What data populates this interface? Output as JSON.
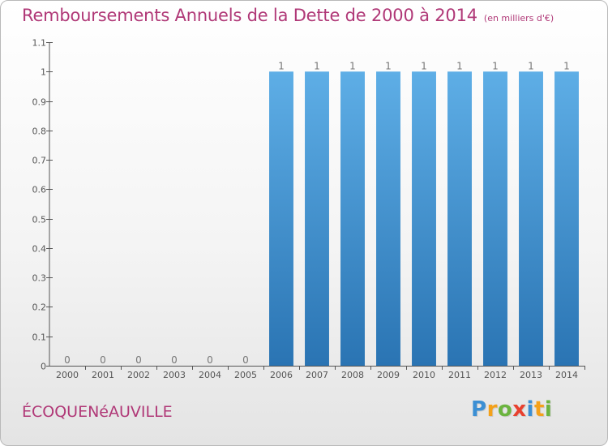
{
  "header": {
    "title": "Remboursements Annuels de la Dette de 2000 à 2014",
    "unit": "(en milliers d'€)"
  },
  "commune": "ÉCOQUENéAUVILLE",
  "logo": {
    "letters": [
      {
        "char": "P",
        "color": "#3b8fd4"
      },
      {
        "char": "r",
        "color": "#f4a11a"
      },
      {
        "char": "o",
        "color": "#6bb43f"
      },
      {
        "char": "x",
        "color": "#e8412f"
      },
      {
        "char": "i",
        "color": "#3b8fd4"
      },
      {
        "char": "t",
        "color": "#f4a11a"
      },
      {
        "char": "i",
        "color": "#6bb43f"
      }
    ]
  },
  "chart_data": {
    "type": "bar",
    "title": "Remboursements Annuels de la Dette de 2000 à 2014",
    "subtitle": "(en milliers d'€)",
    "categories": [
      "2000",
      "2001",
      "2002",
      "2003",
      "2004",
      "2005",
      "2006",
      "2007",
      "2008",
      "2009",
      "2010",
      "2011",
      "2012",
      "2013",
      "2014"
    ],
    "values": [
      0,
      0,
      0,
      0,
      0,
      0,
      1,
      1,
      1,
      1,
      1,
      1,
      1,
      1,
      1
    ],
    "ylim": [
      0,
      1.1
    ],
    "yticks": [
      0,
      0.1,
      0.2,
      0.3,
      0.4,
      0.5,
      0.6,
      0.7,
      0.8,
      0.9,
      1,
      1.1
    ],
    "ytick_labels": [
      "0",
      "0.1",
      "0.2",
      "0.3",
      "0.4",
      "0.5",
      "0.6",
      "0.7",
      "0.8",
      "0.9",
      "1",
      "1.1"
    ],
    "xlabel": "",
    "ylabel": "",
    "grid": false,
    "bar_color_top": "#5eaee6",
    "bar_color_bottom": "#2a74b3",
    "axis_color": "#555555"
  }
}
